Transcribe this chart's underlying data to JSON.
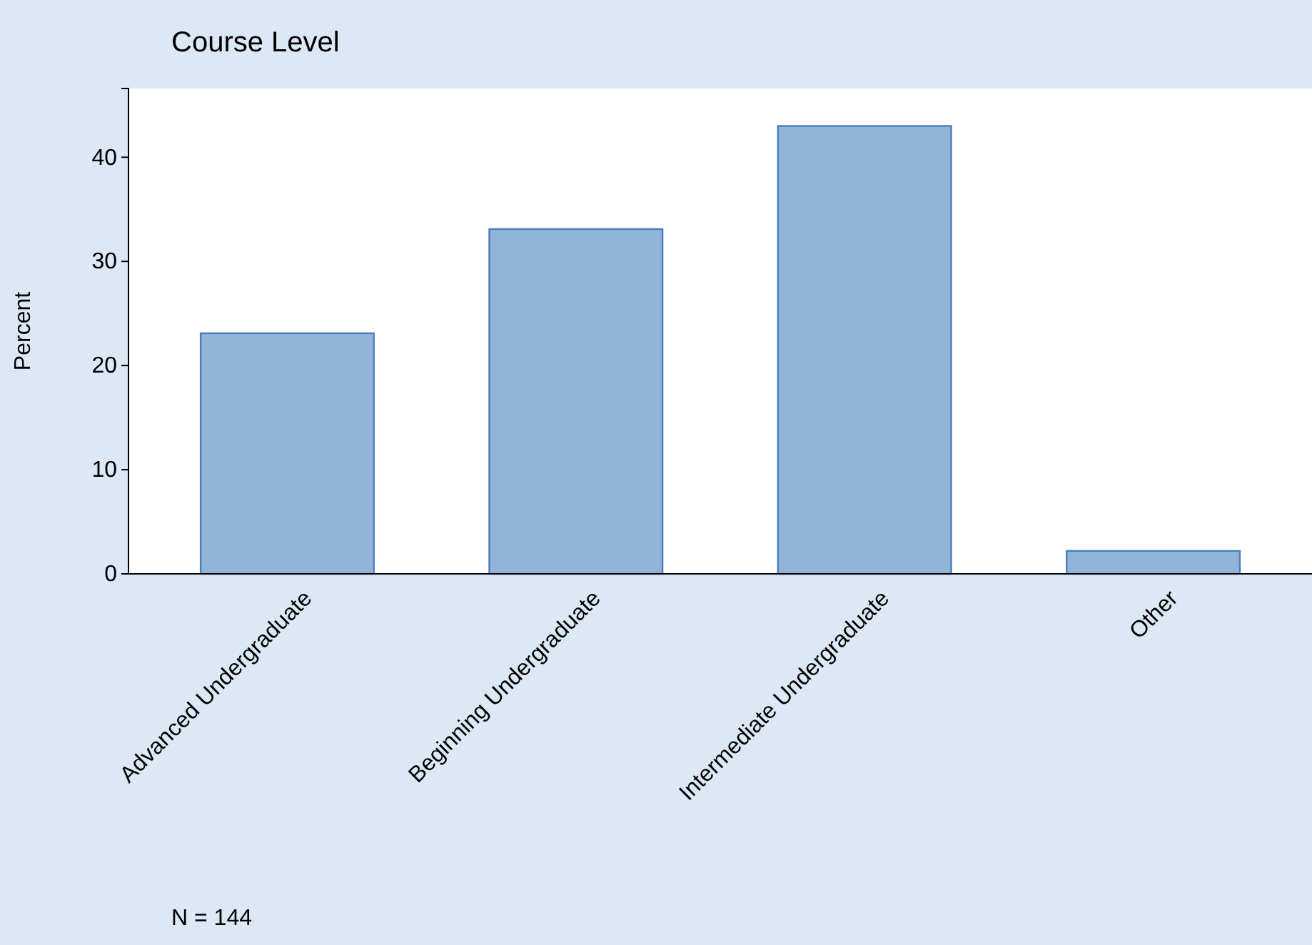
{
  "chart_data": {
    "type": "bar",
    "title": "Course Level",
    "ylabel": "Percent",
    "categories": [
      "Advanced Undergraduate",
      "Beginning Undergraduate",
      "Intermediate Undergraduate",
      "Other"
    ],
    "values": [
      23.1,
      33.1,
      43.0,
      2.2
    ],
    "color": "#92b4d9",
    "ylim": [
      0,
      46.6
    ],
    "yticks": [
      0,
      10,
      20,
      30,
      40
    ],
    "grid": false,
    "annotations": [
      "N = 144"
    ]
  }
}
